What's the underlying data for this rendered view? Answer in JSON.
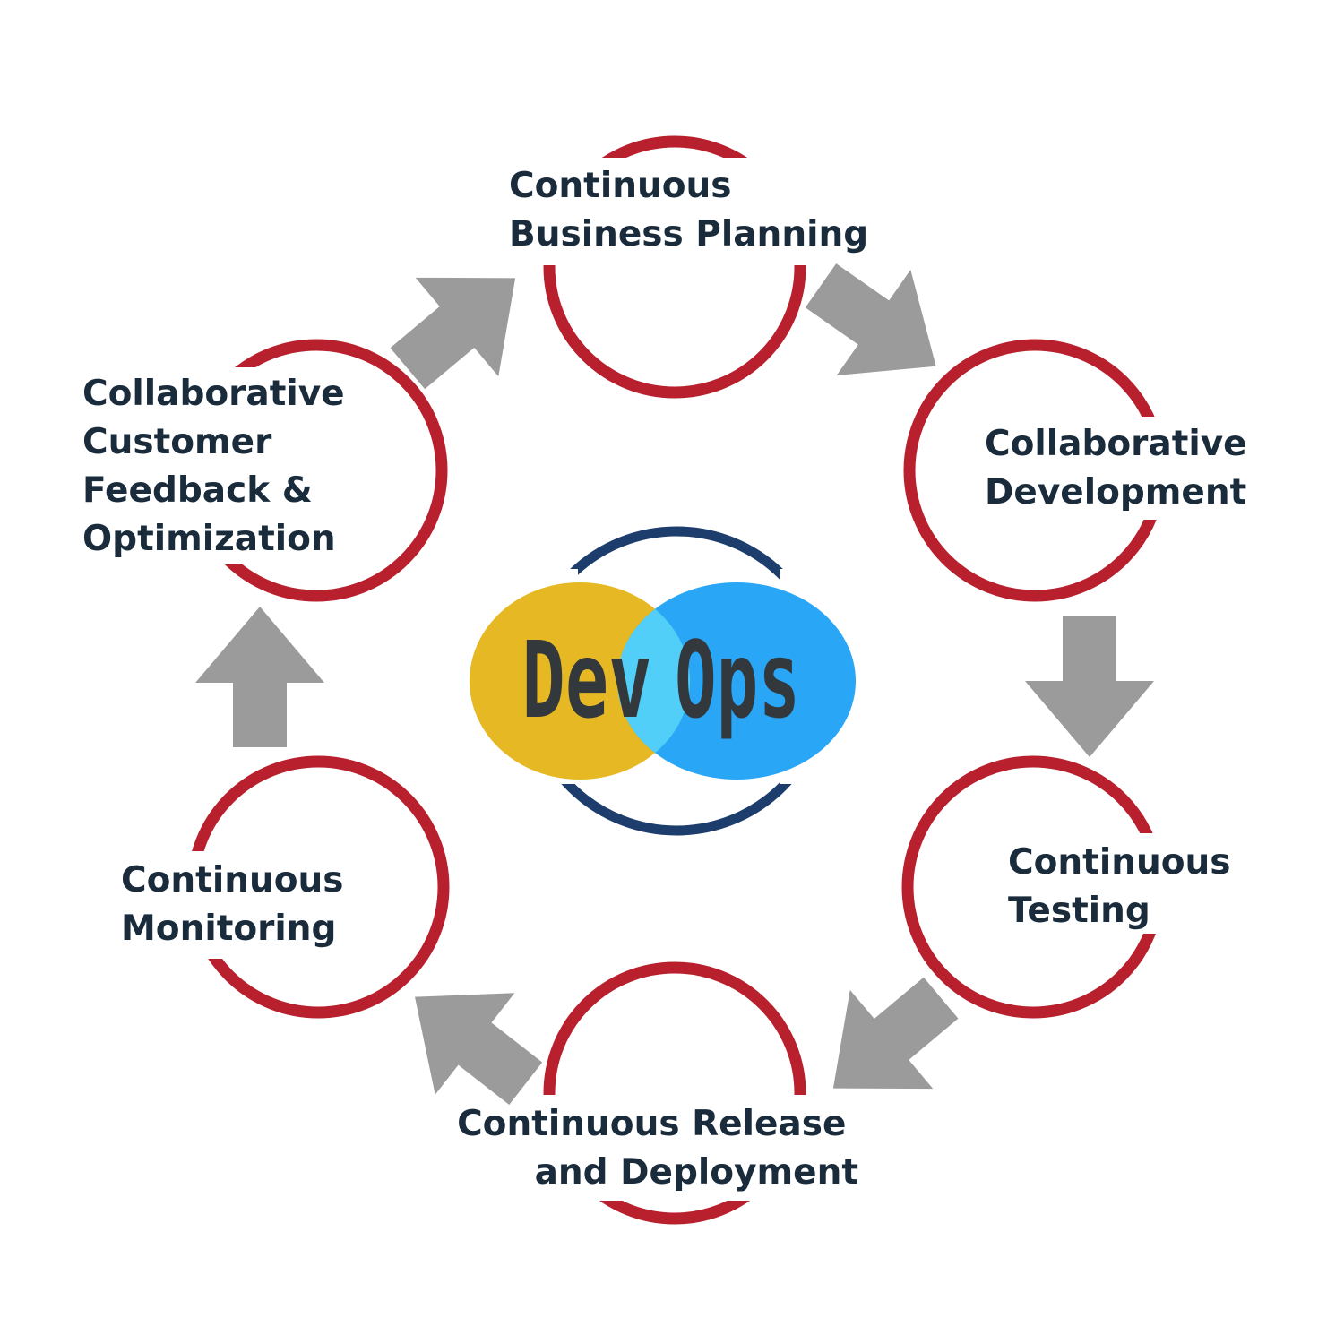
{
  "center": {
    "logo_text_left": "Dev",
    "logo_text_right": "Ops",
    "colors": {
      "left_ellipse": "#e6b824",
      "right_ellipse": "#2aa6f7",
      "overlap": "#51cff8",
      "ring": "#1d3d6d",
      "text": "#33383d"
    }
  },
  "colors": {
    "stage_ring": "#b8202e",
    "arrow": "#9b9b9b",
    "label_text": "#1a2c3c"
  },
  "stages": [
    {
      "id": "planning",
      "lines": [
        "Continuous",
        "Business Planning"
      ]
    },
    {
      "id": "development",
      "lines": [
        "Collaborative",
        "Development"
      ]
    },
    {
      "id": "testing",
      "lines": [
        "Continuous",
        "Testing"
      ]
    },
    {
      "id": "release",
      "lines": [
        "Continuous Release",
        "and Deployment"
      ]
    },
    {
      "id": "monitoring",
      "lines": [
        "Continuous",
        "Monitoring"
      ]
    },
    {
      "id": "feedback",
      "lines": [
        "Collaborative",
        "Customer",
        "Feedback &",
        "Optimization"
      ]
    }
  ]
}
